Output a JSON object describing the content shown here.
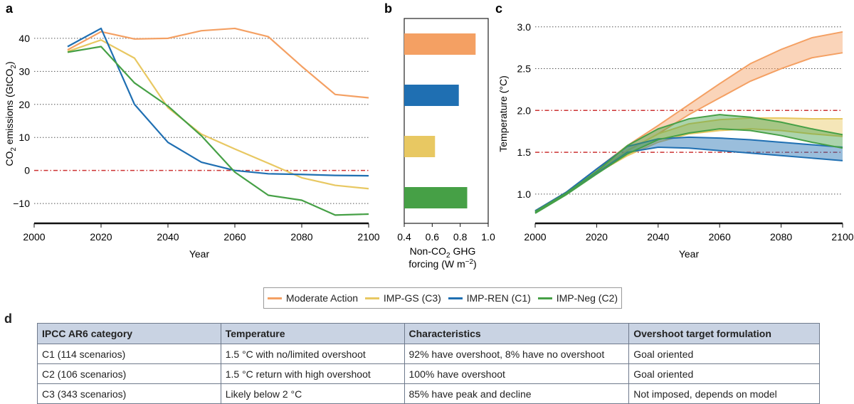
{
  "panel_labels": {
    "a": "a",
    "b": "b",
    "c": "c",
    "d": "d"
  },
  "colors": {
    "moderate": "#f4a063",
    "imp_gs": "#e8c862",
    "imp_ren": "#1f6fb2",
    "imp_neg": "#46a046",
    "reference": "#cc3333",
    "grid": "#555555"
  },
  "legend": [
    {
      "label": "Moderate Action",
      "color": "#f4a063"
    },
    {
      "label": "IMP-GS (C3)",
      "color": "#e8c862"
    },
    {
      "label": "IMP-REN (C1)",
      "color": "#1f6fb2"
    },
    {
      "label": "IMP-Neg (C2)",
      "color": "#46a046"
    }
  ],
  "chart_data": [
    {
      "panel": "a",
      "type": "line",
      "xlabel": "Year",
      "ylabel_parts": [
        "CO",
        "2",
        " emissions (GtCO",
        "2",
        ")"
      ],
      "xlim": [
        2000,
        2100
      ],
      "ylim": [
        -16,
        46
      ],
      "xticks": [
        2000,
        2020,
        2040,
        2060,
        2080,
        2100
      ],
      "yticks": [
        -10,
        0,
        10,
        20,
        30,
        40
      ],
      "reference_lines": [
        0
      ],
      "grid": "horizontal dotted",
      "series": [
        {
          "name": "Moderate Action",
          "color": "#f4a063",
          "x": [
            2010,
            2020,
            2030,
            2040,
            2050,
            2060,
            2070,
            2080,
            2090,
            2100
          ],
          "y": [
            36.5,
            42,
            39.8,
            40,
            42.3,
            43,
            40.5,
            31.5,
            23,
            22
          ]
        },
        {
          "name": "IMP-GS (C3)",
          "color": "#e8c862",
          "x": [
            2010,
            2020,
            2030,
            2040,
            2050,
            2060,
            2070,
            2080,
            2090,
            2100
          ],
          "y": [
            36,
            39.5,
            34,
            19,
            11,
            6.5,
            2.2,
            -2.2,
            -4.5,
            -5.5
          ]
        },
        {
          "name": "IMP-REN (C1)",
          "color": "#1f6fb2",
          "x": [
            2010,
            2020,
            2030,
            2040,
            2050,
            2060,
            2070,
            2080,
            2090,
            2100
          ],
          "y": [
            37.5,
            43,
            20,
            8.5,
            2.5,
            0,
            -1,
            -1.2,
            -1.5,
            -1.6
          ]
        },
        {
          "name": "IMP-Neg (C2)",
          "color": "#46a046",
          "x": [
            2010,
            2020,
            2030,
            2040,
            2050,
            2060,
            2070,
            2080,
            2090,
            2100
          ],
          "y": [
            35.8,
            37.5,
            26.5,
            19.5,
            10.5,
            -0.5,
            -7.5,
            -9,
            -13.5,
            -13.2
          ]
        }
      ]
    },
    {
      "panel": "b",
      "type": "bar",
      "orientation": "horizontal",
      "xlabel_parts": [
        "Non-CO",
        "2",
        " GHG",
        "forcing (W m",
        "−2",
        ")"
      ],
      "xlim": [
        0.4,
        1.0
      ],
      "xticks": [
        0.4,
        0.6,
        0.8,
        1.0
      ],
      "xtick_labels": [
        "0.4",
        "0.6",
        "0.8",
        "1.0"
      ],
      "categories": [
        "Moderate Action",
        "IMP-REN (C1)",
        "IMP-GS (C3)",
        "IMP-Neg (C2)"
      ],
      "values": [
        0.91,
        0.79,
        0.62,
        0.85
      ],
      "colors": [
        "#f4a063",
        "#1f6fb2",
        "#e8c862",
        "#46a046"
      ]
    },
    {
      "panel": "c",
      "type": "area",
      "xlabel": "Year",
      "ylabel": "Temperature (°C)",
      "xlim": [
        2000,
        2100
      ],
      "ylim": [
        0.65,
        3.1
      ],
      "xticks": [
        2000,
        2020,
        2040,
        2060,
        2080,
        2100
      ],
      "yticks": [
        1.0,
        1.5,
        2.0,
        2.5,
        3.0
      ],
      "ytick_labels": [
        "1.0",
        "1.5",
        "2.0",
        "2.5",
        "3.0"
      ],
      "reference_lines": [
        1.5,
        2.0
      ],
      "grid": "horizontal dotted",
      "x": [
        2000,
        2010,
        2020,
        2030,
        2040,
        2050,
        2060,
        2070,
        2080,
        2090,
        2100
      ],
      "series": [
        {
          "name": "Moderate Action",
          "color": "#f4a063",
          "low": [
            0.78,
            1.0,
            1.26,
            1.52,
            1.72,
            1.95,
            2.15,
            2.35,
            2.5,
            2.63,
            2.69
          ],
          "high": [
            0.8,
            1.02,
            1.3,
            1.58,
            1.82,
            2.07,
            2.32,
            2.56,
            2.73,
            2.87,
            2.94
          ]
        },
        {
          "name": "IMP-GS (C3)",
          "color": "#e8c862",
          "low": [
            0.78,
            1.0,
            1.25,
            1.46,
            1.62,
            1.72,
            1.76,
            1.78,
            1.76,
            1.72,
            1.69
          ],
          "high": [
            0.8,
            1.02,
            1.28,
            1.52,
            1.72,
            1.84,
            1.89,
            1.91,
            1.91,
            1.9,
            1.9
          ]
        },
        {
          "name": "IMP-REN (C1)",
          "color": "#1f6fb2",
          "low": [
            0.78,
            1.0,
            1.25,
            1.5,
            1.56,
            1.55,
            1.52,
            1.49,
            1.46,
            1.43,
            1.4
          ]
        },
        {
          "name": "IMP-REN (C1) upper",
          "color": "#1f6fb2",
          "high": [
            0.8,
            1.02,
            1.3,
            1.57,
            1.66,
            1.68,
            1.67,
            1.65,
            1.62,
            1.59,
            1.56
          ]
        },
        {
          "name": "IMP-Neg (C2)",
          "color": "#46a046",
          "low": [
            0.77,
            0.99,
            1.24,
            1.48,
            1.65,
            1.73,
            1.78,
            1.76,
            1.7,
            1.62,
            1.55
          ],
          "high": [
            0.79,
            1.01,
            1.27,
            1.58,
            1.78,
            1.9,
            1.95,
            1.92,
            1.86,
            1.78,
            1.71
          ]
        }
      ]
    }
  ],
  "table": {
    "headers": [
      "IPCC AR6 category",
      "Temperature",
      "Characteristics",
      "Overshoot target formulation"
    ],
    "rows": [
      [
        "C1 (114 scenarios)",
        "1.5 °C with no/limited overshoot",
        "92% have overshoot, 8% have no overshoot",
        "Goal oriented"
      ],
      [
        "C2 (106 scenarios)",
        "1.5 °C return with high overshoot",
        "100% have overshoot",
        "Goal oriented"
      ],
      [
        "C3 (343 scenarios)",
        "Likely below 2 °C",
        "85% have peak and decline",
        "Not imposed, depends on model"
      ]
    ]
  }
}
